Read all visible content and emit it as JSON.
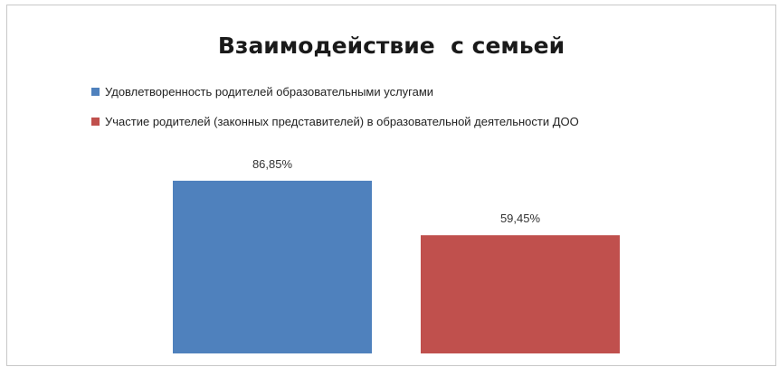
{
  "chart_data": {
    "type": "bar",
    "title": "Взаимодействие  с семьей",
    "categories": [
      "Удовлетворенность родителей образовательными услугами",
      "Участие родителей (законных представителей) в образовательной деятельности ДОО"
    ],
    "values": [
      86.85,
      59.45
    ],
    "data_labels": [
      "86,85%",
      "59,45%"
    ],
    "colors": [
      "#4f81bd",
      "#c0504d"
    ],
    "ylim": [
      0,
      100
    ],
    "grid": false,
    "legend_position": "top-left"
  }
}
